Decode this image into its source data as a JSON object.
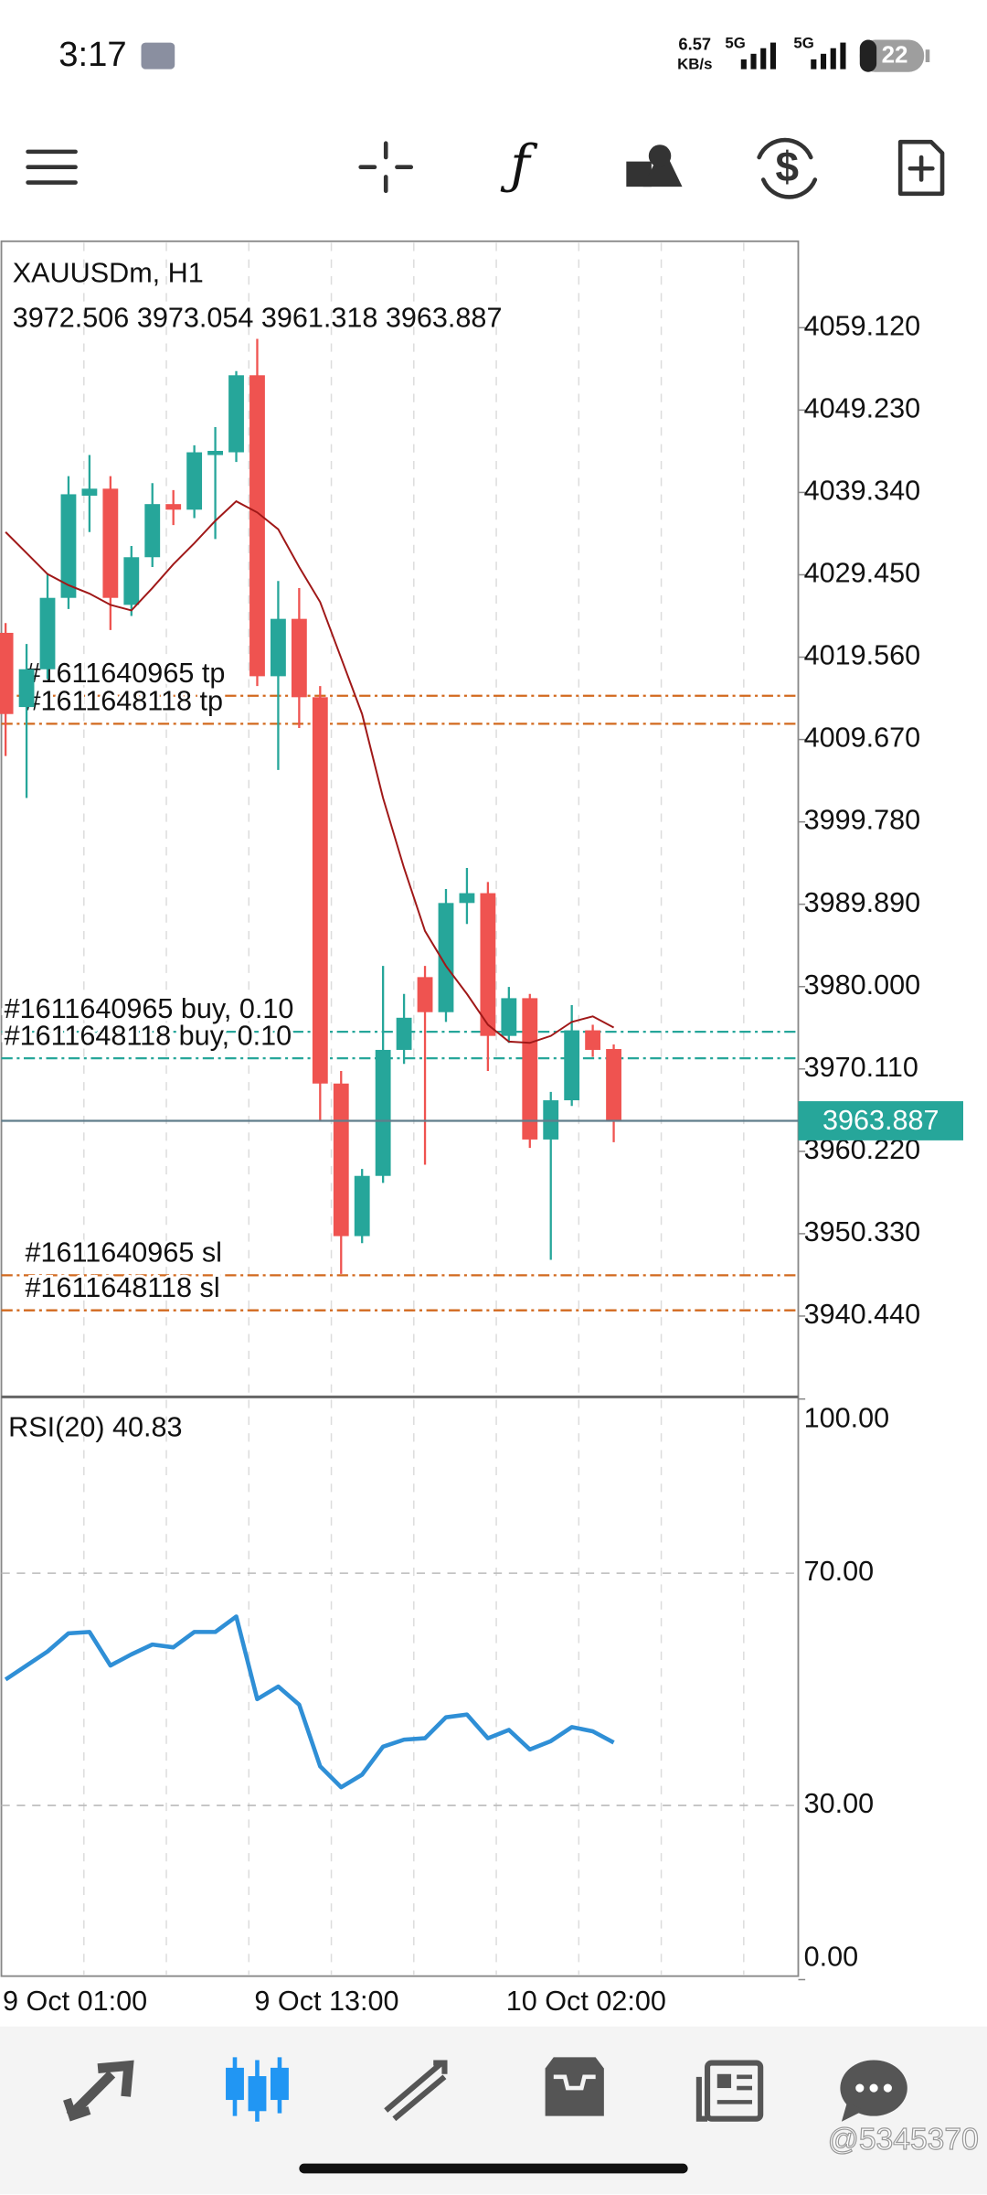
{
  "status_bar": {
    "time": "3:17",
    "speed": "6.57",
    "speed_unit": "KB/s",
    "network": [
      "5G",
      "5G"
    ],
    "battery": "22"
  },
  "chart_data": [
    {
      "type": "candlestick",
      "title": "XAUUSDm, H1",
      "categories": [
        "9 Oct 01:00",
        null,
        null,
        null,
        null,
        null,
        null,
        null,
        null,
        null,
        null,
        null,
        "9 Oct 13:00",
        null,
        null,
        null,
        null,
        null,
        null,
        null,
        null,
        null,
        null,
        null,
        "10 Oct 02:00",
        null,
        null,
        null,
        null,
        null
      ],
      "open": [
        4022.48,
        4013.57,
        4018.11,
        4026.68,
        4038.95,
        4039.79,
        4025.84,
        4031.56,
        4037.94,
        4037.27,
        4043.83,
        4044.16,
        4053.41,
        4017.27,
        4024.16,
        4014.75,
        3968.36,
        3950.04,
        3957.27,
        3972.4,
        3981.14,
        3976.93,
        3990.04,
        3991.22,
        3974.08,
        3978.61,
        3961.64,
        3966.35,
        3974.75,
        3972.506
      ],
      "high": [
        4023.66,
        4021.14,
        4029.54,
        4041.3,
        4043.83,
        4041.3,
        4032.9,
        4040.46,
        4039.62,
        4045.0,
        4047.19,
        4053.91,
        4057.78,
        4028.7,
        4027.86,
        4016.09,
        3969.87,
        3958.11,
        3982.48,
        3979.12,
        3982.48,
        3991.72,
        3994.25,
        3992.56,
        3979.96,
        3979.12,
        3967.35,
        3977.77,
        3975.42,
        3973.054
      ],
      "low": [
        4007.69,
        4002.65,
        4016.93,
        4025.34,
        4034.58,
        4022.82,
        4024.5,
        4030.38,
        4035.42,
        4036.26,
        4033.74,
        4042.99,
        4016.09,
        4006.01,
        4011.05,
        3963.99,
        3945.5,
        3949.2,
        3956.43,
        3970.72,
        3958.61,
        3975.76,
        3987.52,
        3969.87,
        3973.24,
        3960.63,
        3947.19,
        3965.67,
        3971.56,
        3961.318
      ],
      "close": [
        4012.73,
        4018.11,
        4026.68,
        4039.12,
        4039.79,
        4026.68,
        4031.56,
        4037.94,
        4037.27,
        4044.16,
        4044.33,
        4053.41,
        4017.27,
        4024.16,
        4014.75,
        3968.36,
        3950.04,
        3957.27,
        3972.4,
        3976.26,
        3976.93,
        3990.04,
        3991.22,
        3974.08,
        3978.61,
        3961.64,
        3966.35,
        3974.75,
        3972.4,
        3963.887
      ],
      "up_color": "#26a69a",
      "down_color": "#ef5350",
      "moving_average": {
        "color": "#a01818",
        "values": [
          4034.58,
          4032.06,
          4029.54,
          4028.2,
          4027.19,
          4025.84,
          4025.17,
          4027.86,
          4030.72,
          4033.24,
          4035.93,
          4038.28,
          4036.94,
          4034.92,
          4030.38,
          4026.18,
          4019.46,
          4012.73,
          4002.65,
          3994.25,
          3986.68,
          3982.48,
          3979.12,
          3975.42,
          3973.4,
          3973.24,
          3974.08,
          3975.76,
          3976.43,
          3975.08
        ]
      },
      "levels": [
        {
          "label": "#1611640965 tp",
          "value": 4014.92,
          "color": "#d2691e"
        },
        {
          "label": "#1611648118 tp",
          "value": 4011.56,
          "color": "#d2691e"
        },
        {
          "label": "#1611640965 buy, 0.10",
          "value": 3974.58,
          "color": "#26a69a"
        },
        {
          "label": "#1611648118 buy, 0.10",
          "value": 3971.39,
          "color": "#26a69a"
        },
        {
          "label": "#1611640965 sl",
          "value": 3945.34,
          "color": "#d2691e"
        },
        {
          "label": "#1611648118 sl",
          "value": 3941.13,
          "color": "#d2691e"
        }
      ],
      "last_price_color": "#26a69a",
      "ylim": [
        3930.9,
        4069.5
      ],
      "yticks": [
        {
          "value": 4059.12,
          "label": "4059.120"
        },
        {
          "value": 4049.23,
          "label": "4049.230"
        },
        {
          "value": 4039.34,
          "label": "4039.340"
        },
        {
          "value": 4029.45,
          "label": "4029.450"
        },
        {
          "value": 4019.56,
          "label": "4019.560"
        },
        {
          "value": 4009.67,
          "label": "4009.670"
        },
        {
          "value": 3999.78,
          "label": "3999.780"
        },
        {
          "value": 3989.89,
          "label": "3989.890"
        },
        {
          "value": 3980,
          "label": "3980.000"
        },
        {
          "value": 3970.11,
          "label": "3970.110"
        },
        {
          "value": 3960.22,
          "label": "3960.220"
        },
        {
          "value": 3950.33,
          "label": "3950.330"
        },
        {
          "value": 3940.44,
          "label": "3940.440"
        }
      ],
      "grid": true
    },
    {
      "type": "line",
      "title": "RSI(20)",
      "color": "#2f8fd6",
      "values": [
        51.69,
        54.1,
        56.51,
        59.64,
        59.88,
        54.1,
        56.02,
        57.71,
        57.23,
        59.88,
        59.88,
        62.53,
        48.31,
        50.48,
        47.35,
        36.75,
        33.13,
        35.3,
        40.12,
        41.33,
        41.57,
        45.18,
        45.66,
        41.57,
        43.01,
        39.64,
        41.08,
        43.49,
        42.77,
        40.83
      ],
      "ylim": [
        0,
        100
      ],
      "yticks": [
        {
          "value": 100,
          "label": "100.00"
        },
        {
          "value": 70,
          "label": "70.00"
        },
        {
          "value": 30,
          "label": "30.00"
        },
        {
          "value": 0,
          "label": "0.00"
        }
      ],
      "grid": true
    }
  ],
  "watermark": "@5345370"
}
